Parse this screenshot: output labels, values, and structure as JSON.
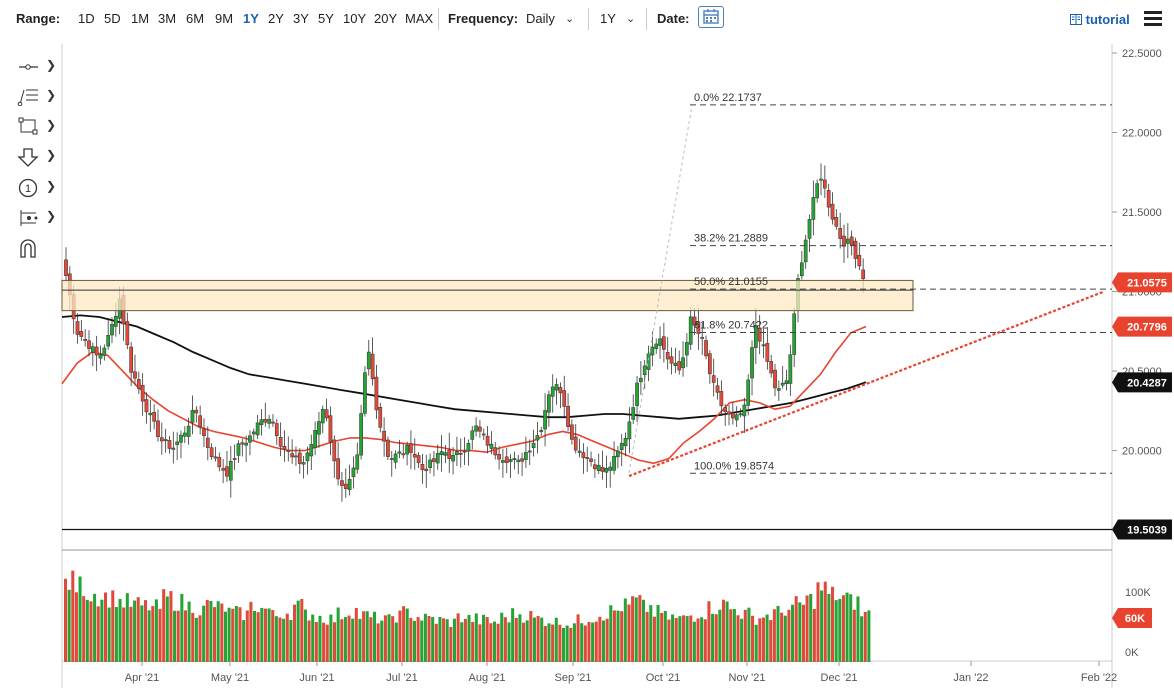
{
  "toolbar": {
    "range_label": "Range:",
    "ranges": [
      "1D",
      "5D",
      "1M",
      "3M",
      "6M",
      "9M",
      "1Y",
      "2Y",
      "3Y",
      "5Y",
      "10Y",
      "20Y",
      "MAX"
    ],
    "active_range": "1Y",
    "frequency_label": "Frequency:",
    "frequency_value": "Daily",
    "period_value": "1Y",
    "date_label": "Date:",
    "tutorial_label": "tutorial"
  },
  "colors": {
    "up": "#26a335",
    "down": "#e04a3a",
    "sma_long": "#111111",
    "sma_short": "#e8432f",
    "trendline": "#e8432f",
    "zone_fill": "#fde9c4",
    "zone_border": "#6b5a3a",
    "accent": "#1a5fb4"
  },
  "tools": [
    "line-tool-icon",
    "fib-tool-icon",
    "rectangle-tool-icon",
    "arrow-tool-icon",
    "text-number-tool-icon",
    "measure-tool-icon",
    "magnet-icon"
  ],
  "chart_data": {
    "type": "candlestick",
    "price_axis": {
      "ticks": [
        "22.5000",
        "22.0000",
        "21.5000",
        "21.0000",
        "20.5000",
        "20.0000"
      ],
      "ylim": [
        19.4,
        22.6
      ]
    },
    "volume_axis": {
      "ticks": [
        "100K",
        "0K"
      ],
      "current": "60K"
    },
    "x_ticks": [
      "Apr '21",
      "May '21",
      "Jun '21",
      "Jul '21",
      "Aug '21",
      "Sep '21",
      "Oct '21",
      "Nov '21",
      "Dec '21",
      "Jan '22",
      "Feb '22"
    ],
    "fib_levels": [
      {
        "label": "0.0% 22.1737",
        "value": 22.1737
      },
      {
        "label": "38.2% 21.2889",
        "value": 21.2889
      },
      {
        "label": "50.0% 21.0155",
        "value": 21.0155
      },
      {
        "label": "61.8% 20.7422",
        "value": 20.7422
      },
      {
        "label": "100.0% 19.8574",
        "value": 19.8574
      }
    ],
    "price_tags": [
      {
        "label": "21.0575",
        "value": 21.0575,
        "color": "#e8432f"
      },
      {
        "label": "20.7796",
        "value": 20.7796,
        "color": "#e8432f"
      },
      {
        "label": "20.4287",
        "value": 20.4287,
        "color": "#111111"
      },
      {
        "label": "19.5039",
        "value": 19.5039,
        "color": "#111111"
      }
    ],
    "support_line": 19.5039,
    "zone": [
      20.88,
      21.02
    ],
    "trendline": {
      "from": [
        "Sep 17 '21",
        19.84
      ],
      "to": [
        "Dec 29 '21",
        21.0
      ]
    },
    "close_path": [
      21.1,
      20.75,
      20.68,
      20.58,
      20.72,
      20.96,
      20.52,
      20.35,
      20.18,
      20.05,
      20.02,
      20.12,
      20.26,
      20.05,
      19.92,
      19.86,
      20.02,
      20.08,
      20.18,
      20.22,
      20.04,
      19.95,
      19.92,
      20.08,
      20.3,
      19.88,
      19.74,
      19.92,
      20.66,
      20.2,
      19.95,
      19.98,
      20.02,
      19.88,
      19.92,
      20.0,
      19.95,
      20.02,
      20.15,
      20.06,
      19.98,
      19.95,
      19.92,
      20.02,
      20.12,
      20.42,
      20.38,
      20.05,
      19.98,
      19.92,
      19.86,
      19.95,
      20.1,
      20.4,
      20.62,
      20.72,
      20.56,
      20.5,
      20.82,
      20.7,
      20.42,
      20.26,
      20.18,
      20.26,
      20.8,
      20.58,
      20.36,
      20.45,
      21.1,
      21.45,
      21.75,
      21.5,
      21.32,
      21.29,
      21.1
    ],
    "sma_long": [
      20.84,
      20.85,
      20.84,
      20.81,
      20.78,
      20.73,
      20.68,
      20.62,
      20.57,
      20.52,
      20.48,
      20.46,
      20.44,
      20.42,
      20.4,
      20.38,
      20.36,
      20.34,
      20.32,
      20.3,
      20.28,
      20.26,
      20.25,
      20.24,
      20.23,
      20.22,
      20.21,
      20.21,
      20.22,
      20.23,
      20.23,
      20.22,
      20.21,
      20.2,
      20.21,
      20.22,
      20.24,
      20.26,
      20.28,
      20.3,
      20.33,
      20.36,
      20.39,
      20.43
    ],
    "sma_short": [
      20.42,
      20.55,
      20.62,
      20.6,
      20.5,
      20.4,
      20.32,
      20.25,
      20.2,
      20.15,
      20.12,
      20.1,
      20.08,
      20.05,
      20.02,
      20.0,
      20.0,
      20.03,
      20.06,
      20.08,
      20.08,
      20.07,
      20.05,
      20.04,
      20.03,
      20.02,
      20.0,
      20.0,
      19.99,
      20.02,
      20.04,
      20.06,
      20.1,
      20.12,
      20.1,
      20.06,
      20.02,
      19.98,
      19.94,
      19.92,
      19.95,
      20.05,
      20.12,
      20.2,
      20.3,
      20.32,
      20.3,
      20.26,
      20.28,
      20.38,
      20.48,
      20.62,
      20.74,
      20.78
    ],
    "volume_profile": [
      100,
      95,
      85,
      82,
      80,
      75,
      72,
      70,
      68,
      80,
      75,
      70,
      65,
      72,
      68,
      62,
      60,
      70,
      66,
      58,
      62,
      70,
      60,
      56,
      54,
      60,
      64,
      58,
      55,
      52,
      58,
      62,
      56,
      54,
      52,
      50,
      56,
      54,
      52,
      50,
      56,
      60,
      58,
      54,
      52,
      50,
      48,
      52,
      56,
      60,
      64,
      70,
      76,
      68,
      62,
      56,
      54,
      58,
      62,
      68,
      72,
      66,
      60,
      55,
      58,
      62,
      66,
      72,
      78,
      92,
      84,
      80,
      75,
      60
    ],
    "volume_up": [
      1,
      1,
      0,
      1,
      0,
      0,
      1,
      0,
      1,
      1,
      0,
      1,
      0,
      1,
      0,
      0,
      1,
      1,
      0,
      1,
      0,
      1,
      0,
      1,
      1,
      0,
      1,
      0,
      1,
      0,
      1,
      1,
      0,
      0,
      1,
      0,
      1,
      0,
      1,
      1,
      0,
      0,
      1,
      0,
      1,
      0,
      0,
      1,
      1,
      1,
      0,
      1,
      1,
      0,
      1,
      0,
      1,
      0,
      1,
      1,
      0,
      1,
      0,
      1,
      1,
      1,
      0,
      1,
      1,
      1,
      0,
      0,
      0,
      0
    ]
  }
}
